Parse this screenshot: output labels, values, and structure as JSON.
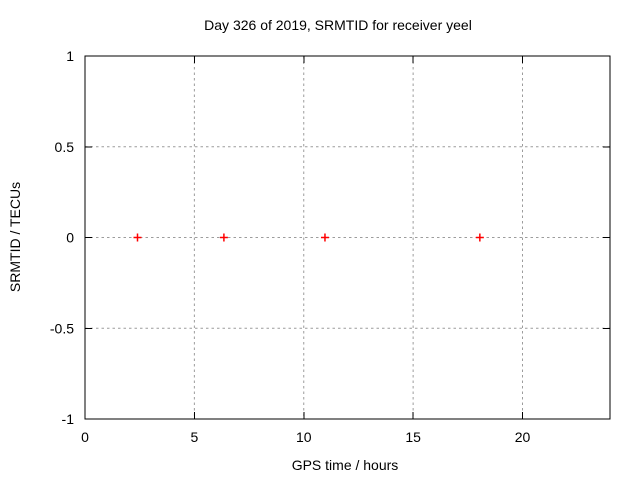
{
  "chart_data": {
    "type": "scatter",
    "title": "Day 326 of 2019, SRMTID for receiver yeel",
    "xlabel": "GPS time / hours",
    "ylabel": "SRMTID / TECUs",
    "xlim": [
      0,
      24
    ],
    "ylim": [
      -1,
      1
    ],
    "xticks": [
      0,
      5,
      10,
      15,
      20
    ],
    "yticks": [
      -1,
      -0.5,
      0,
      0.5,
      1
    ],
    "grid": "dotted",
    "legend": "none",
    "series": [
      {
        "name": "SRMTID",
        "marker": "plus",
        "color": "#ff0000",
        "points": [
          {
            "x": 2.4,
            "y": 0
          },
          {
            "x": 6.35,
            "y": 0
          },
          {
            "x": 10.97,
            "y": 0
          },
          {
            "x": 18.05,
            "y": 0
          }
        ]
      }
    ],
    "colors": {
      "axis": "#000000",
      "grid": "#9c9c9c",
      "text": "#000000",
      "background": "#ffffff"
    }
  }
}
